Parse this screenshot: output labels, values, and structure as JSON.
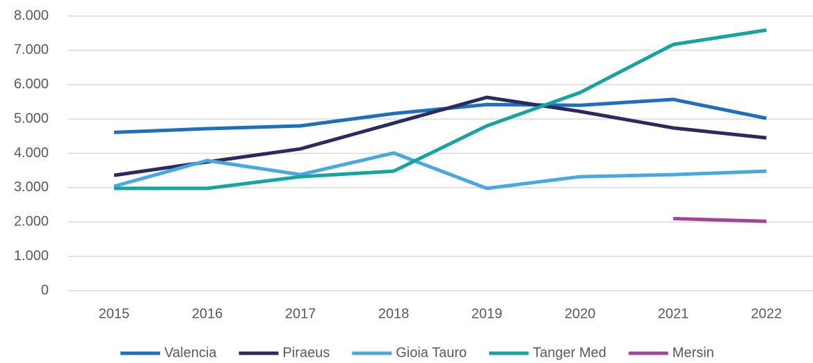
{
  "chart_data": {
    "type": "line",
    "categories": [
      "2015",
      "2016",
      "2017",
      "2018",
      "2019",
      "2020",
      "2021",
      "2022"
    ],
    "series": [
      {
        "name": "Valencia",
        "color": "#1f6fbf",
        "values": [
          4610,
          4720,
          4800,
          5160,
          5420,
          5400,
          5570,
          5020
        ]
      },
      {
        "name": "Piraeus",
        "color": "#2b2a5e",
        "values": [
          3360,
          3750,
          4130,
          4880,
          5630,
          5220,
          4740,
          4450
        ]
      },
      {
        "name": "Gioia Tauro",
        "color": "#4aa8e0",
        "values": [
          3040,
          3790,
          3380,
          4010,
          2980,
          3320,
          3380,
          3480
        ]
      },
      {
        "name": "Tanger Med",
        "color": "#17a3a0",
        "values": [
          2980,
          2980,
          3320,
          3480,
          4800,
          5770,
          7170,
          7590
        ]
      },
      {
        "name": "Mersin",
        "color": "#a0449a",
        "values": [
          null,
          null,
          null,
          null,
          null,
          null,
          2100,
          2020
        ]
      }
    ],
    "ylim": [
      0,
      8000
    ],
    "yticks": [
      0,
      {
        "value": 1000,
        "label": "1.000"
      },
      {
        "value": 2000,
        "label": "2.000"
      },
      {
        "value": 3000,
        "label": "3.000"
      },
      {
        "value": 4000,
        "label": "4.000"
      },
      {
        "value": 5000,
        "label": "5.000"
      },
      {
        "value": 6000,
        "label": "6.000"
      },
      {
        "value": 7000,
        "label": "7.000"
      },
      {
        "value": 8000,
        "label": "8.000"
      }
    ],
    "grid": true,
    "legend": "bottom"
  }
}
